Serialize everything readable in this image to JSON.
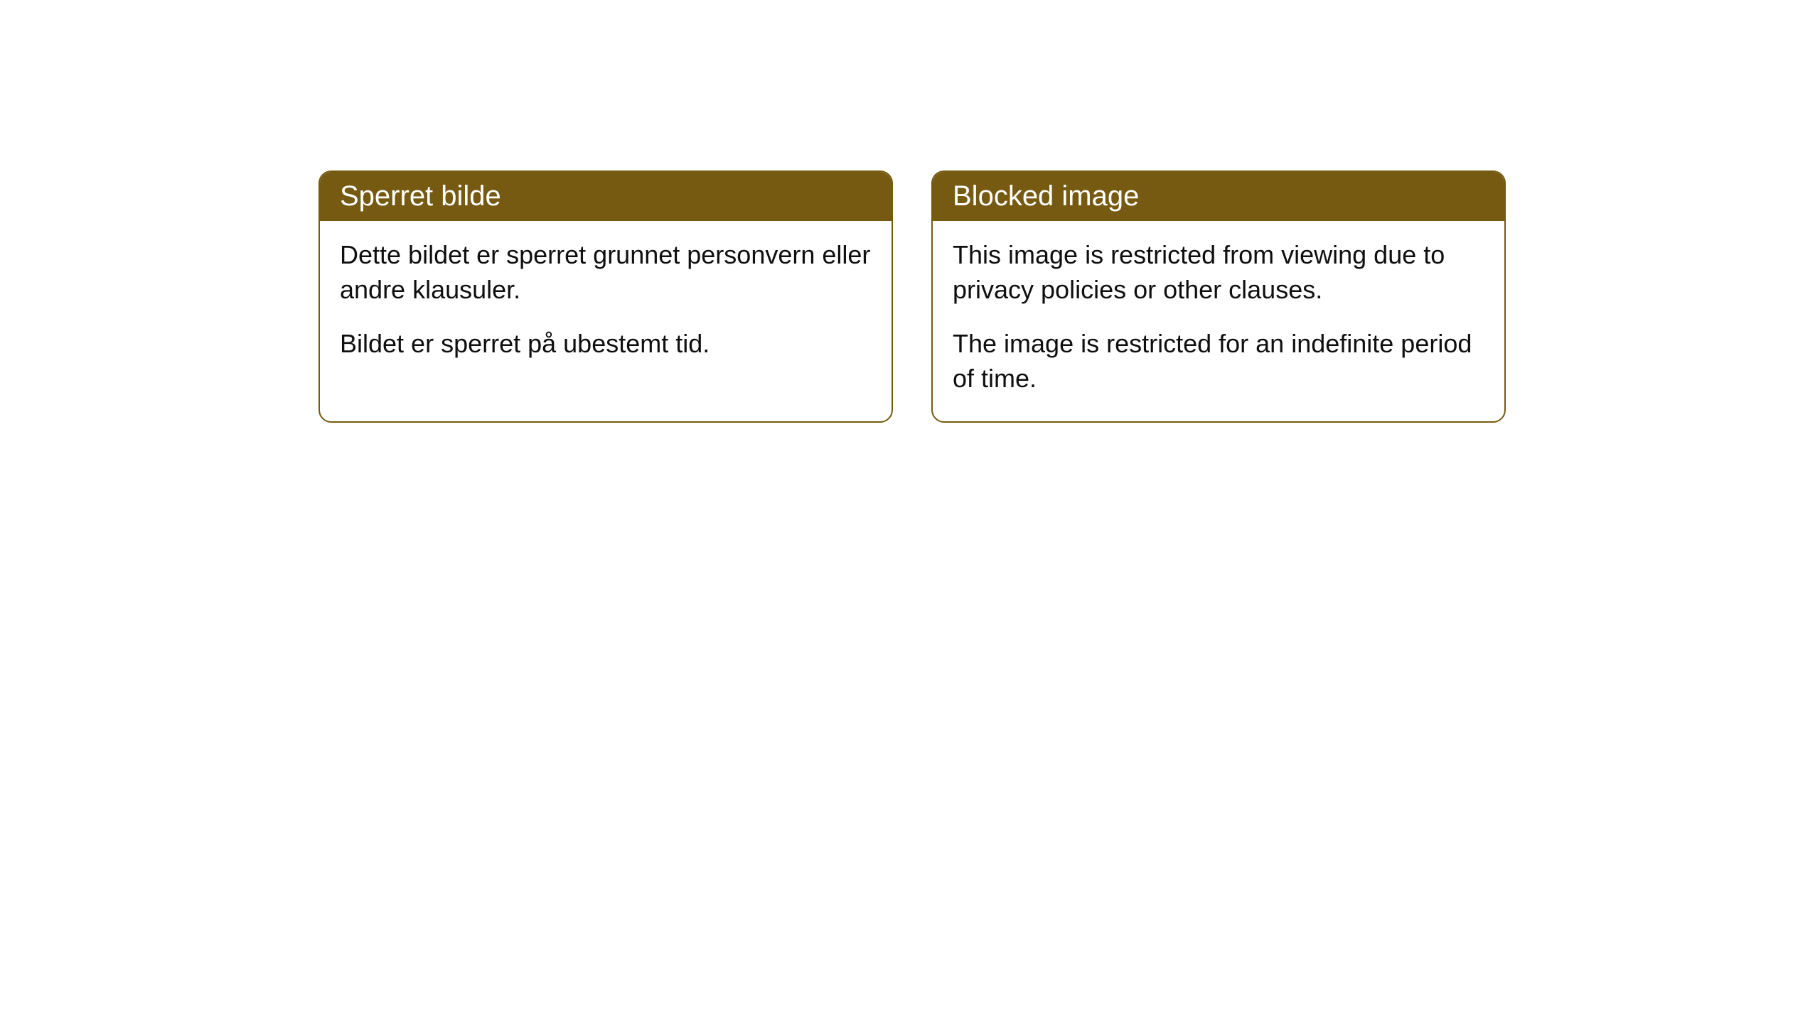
{
  "cards": [
    {
      "title": "Sperret bilde",
      "para1": "Dette bildet er sperret grunnet personvern eller andre klausuler.",
      "para2": "Bildet er sperret på ubestemt tid."
    },
    {
      "title": "Blocked image",
      "para1": "This image is restricted from viewing due to privacy policies or other clauses.",
      "para2": "The image is restricted for an indefinite period of time."
    }
  ],
  "style": {
    "header_bg_color": "#765a11",
    "header_text_color": "#ffffff",
    "border_color": "#765a11",
    "body_bg_color": "#ffffff",
    "body_text_color": "#0f0f0f",
    "border_radius": 18,
    "header_fontsize": 40,
    "body_fontsize": 36
  }
}
